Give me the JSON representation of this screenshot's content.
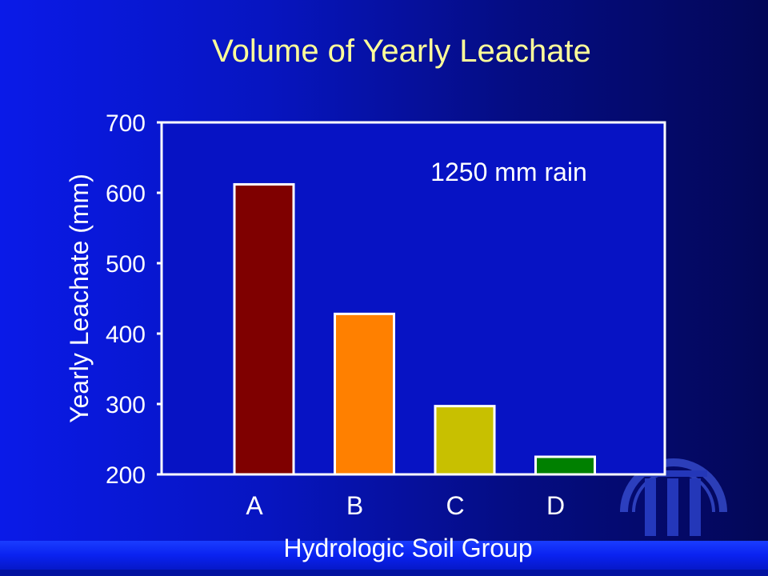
{
  "colors": {
    "title": "#ffff99",
    "text": "#ffffff",
    "axis": "#ffffff",
    "plot_bg": "#0713c4"
  },
  "chart_data": {
    "type": "bar",
    "title": "Volume of Yearly Leachate",
    "annotation": "1250 mm rain",
    "xlabel": "Hydrologic Soil Group",
    "ylabel": "Yearly Leachate (mm)",
    "categories": [
      "A",
      "B",
      "C",
      "D"
    ],
    "values": [
      612,
      428,
      297,
      225
    ],
    "colors": [
      "#7f0000",
      "#ff8000",
      "#c8c000",
      "#008000"
    ],
    "ylim": [
      200,
      700
    ],
    "yticks": [
      200,
      300,
      400,
      500,
      600,
      700
    ],
    "grid": false,
    "legend": "none"
  },
  "logo": {
    "icon": "university-columns-logo-icon"
  }
}
